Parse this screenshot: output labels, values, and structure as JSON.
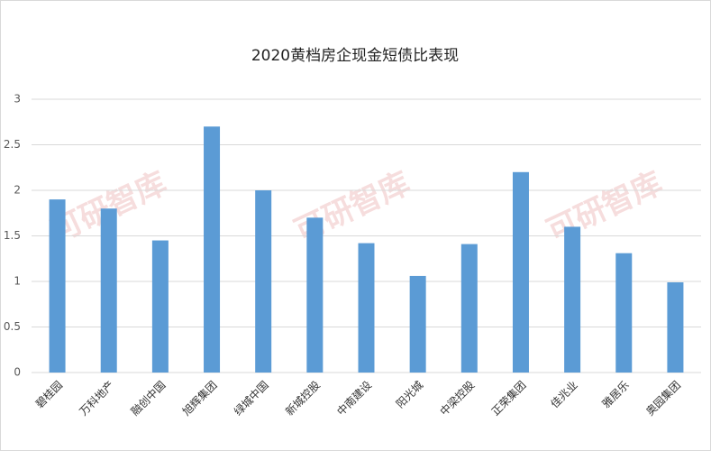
{
  "chart_data": {
    "type": "bar",
    "title": "2020黄档房企现金短债比表现",
    "watermark": "可研智库",
    "categories": [
      "碧桂园",
      "万科地产",
      "融创中国",
      "旭辉集团",
      "绿城中国",
      "新城控股",
      "中南建设",
      "阳光城",
      "中梁控股",
      "正荣集团",
      "佳兆业",
      "雅居乐",
      "奥园集团"
    ],
    "values": [
      1.9,
      1.8,
      1.45,
      2.7,
      2.0,
      1.7,
      1.42,
      1.06,
      1.41,
      2.2,
      1.6,
      1.31,
      0.99
    ],
    "color": "#5b9bd5",
    "ylim": [
      0,
      3
    ],
    "yticks": [
      0,
      0.5,
      1,
      1.5,
      2,
      2.5,
      3
    ],
    "grid": true
  }
}
